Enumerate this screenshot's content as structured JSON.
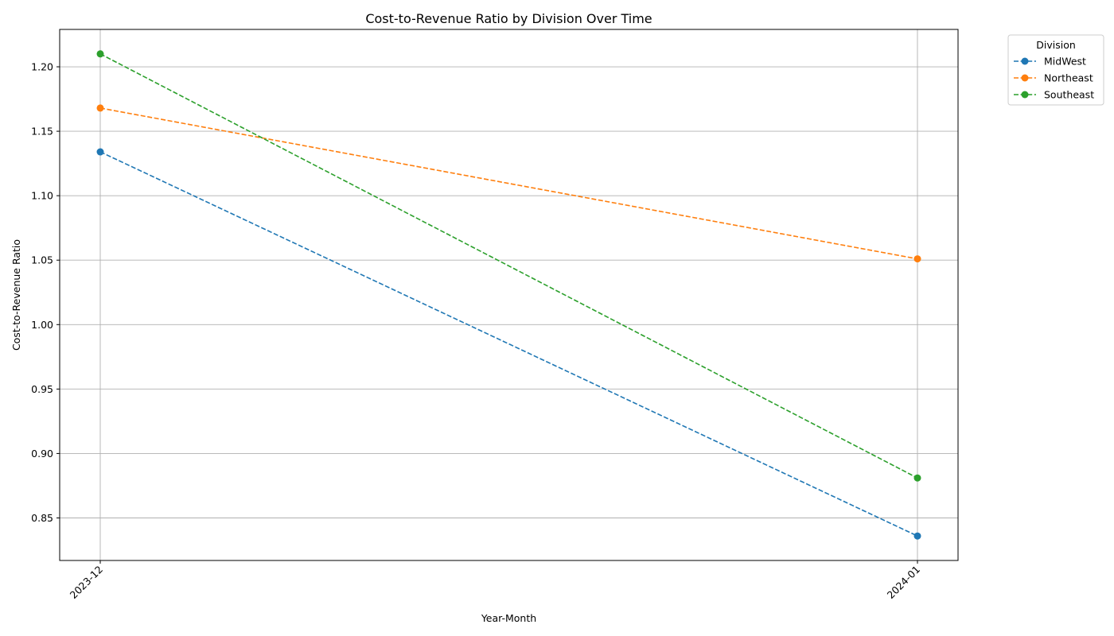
{
  "chart_data": {
    "type": "line",
    "title": "Cost-to-Revenue Ratio by Division Over Time",
    "xlabel": "Year-Month",
    "ylabel": "Cost-to-Revenue Ratio",
    "categories": [
      "2023-12",
      "2024-01"
    ],
    "ylim": [
      0.817,
      1.229
    ],
    "yticks": [
      "0.85",
      "0.90",
      "0.95",
      "1.00",
      "1.05",
      "1.10",
      "1.15",
      "1.20"
    ],
    "ytick_values": [
      0.85,
      0.9,
      0.95,
      1.0,
      1.05,
      1.1,
      1.15,
      1.2
    ],
    "grid": true,
    "line_style": "dashed",
    "marker": "circle",
    "legend": {
      "title": "Division",
      "placement": "outside-top-right"
    },
    "series": [
      {
        "name": "MidWest",
        "color": "#1f77b4",
        "values": [
          1.134,
          0.836
        ]
      },
      {
        "name": "Northeast",
        "color": "#ff7f0e",
        "values": [
          1.168,
          1.051
        ]
      },
      {
        "name": "Southeast",
        "color": "#2ca02c",
        "values": [
          1.21,
          0.881
        ]
      }
    ]
  }
}
